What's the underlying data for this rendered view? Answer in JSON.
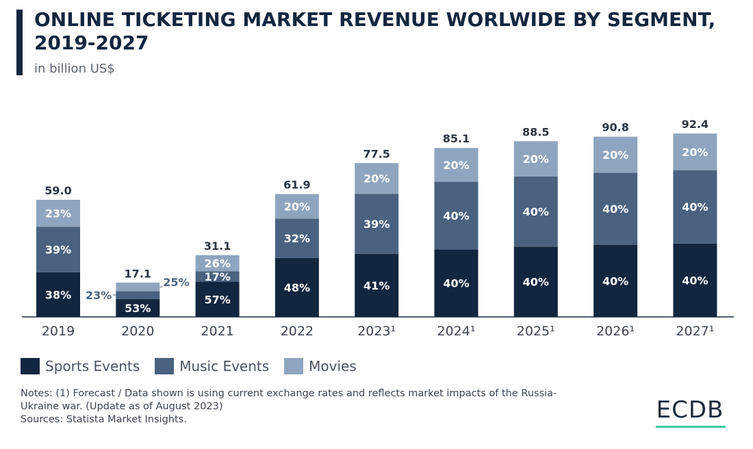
{
  "header": {
    "title": "ONLINE TICKETING MARKET REVENUE WORLWIDE BY SEGMENT, 2019-2027",
    "subtitle": "in billion US$"
  },
  "colors": {
    "sports": "#13263f",
    "music": "#4a6280",
    "movies": "#8fa5bf",
    "axis": "#1e2b3c",
    "brand_accent": "#3fc8a0"
  },
  "legend": {
    "items": [
      {
        "label": "Sports Events",
        "color": "#13263f"
      },
      {
        "label": "Music Events",
        "color": "#4a6280"
      },
      {
        "label": "Movies",
        "color": "#8fa5bf"
      }
    ]
  },
  "notes": {
    "line1": "Notes: (1) Forecast / Data shown is using current exchange rates and reflects market impacts of the Russia-Ukraine war. (Update as of August 2023)",
    "line2": "Sources: Statista Market Insights."
  },
  "logo": {
    "text": "ECDB"
  },
  "chart_data": {
    "type": "bar",
    "stacked": true,
    "title": "ONLINE TICKETING MARKET REVENUE WORLWIDE BY SEGMENT, 2019-2027",
    "subtitle": "in billion US$",
    "categories": [
      "2019",
      "2020",
      "2021",
      "2022",
      "2023¹",
      "2024¹",
      "2025¹",
      "2026¹",
      "2027¹"
    ],
    "totals": [
      59.0,
      17.1,
      31.1,
      61.9,
      77.5,
      85.1,
      88.5,
      90.8,
      92.4
    ],
    "total_labels": [
      "59.0",
      "17.1",
      "31.1",
      "61.9",
      "77.5",
      "85.1",
      "88.5",
      "90.8",
      "92.4"
    ],
    "series": [
      {
        "name": "Sports Events",
        "shares": [
          38,
          53,
          57,
          48,
          41,
          40,
          40,
          40,
          40
        ]
      },
      {
        "name": "Music Events",
        "shares": [
          39,
          23,
          17,
          32,
          39,
          40,
          40,
          40,
          40
        ]
      },
      {
        "name": "Movies",
        "shares": [
          23,
          25,
          26,
          20,
          20,
          20,
          20,
          20,
          20
        ]
      }
    ],
    "ylim": [
      0,
      100
    ],
    "legend_position": "bottom-left",
    "grid": false
  }
}
